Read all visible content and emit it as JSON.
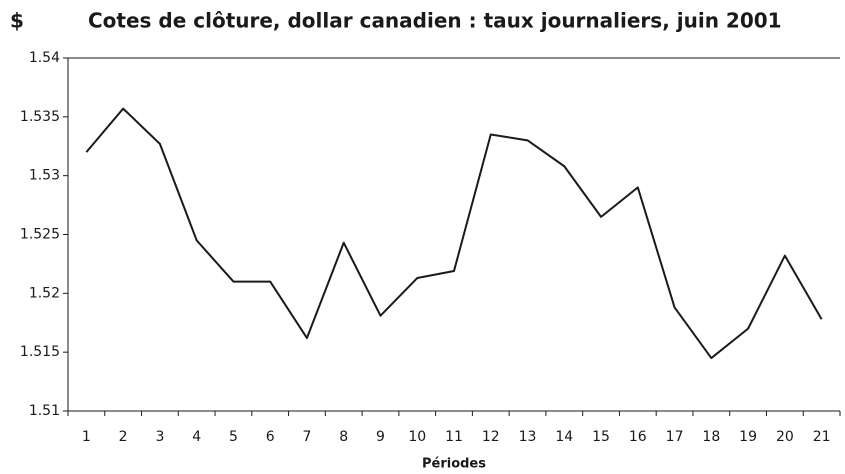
{
  "chart_data": {
    "type": "line",
    "title": "Cotes de clôture, dollar canadien : taux journaliers, juin 2001",
    "y_label": "$",
    "x_label": "Périodes",
    "categories": [
      "1",
      "2",
      "3",
      "4",
      "5",
      "6",
      "7",
      "8",
      "9",
      "10",
      "11",
      "12",
      "13",
      "14",
      "15",
      "16",
      "17",
      "18",
      "19",
      "20",
      "21"
    ],
    "series": [
      {
        "color": "#1a1a1a",
        "values": [
          1.532,
          1.5357,
          1.5327,
          1.5245,
          1.521,
          1.521,
          1.5162,
          1.5243,
          1.5181,
          1.5213,
          1.5219,
          1.5335,
          1.533,
          1.5308,
          1.5265,
          1.529,
          1.5188,
          1.5145,
          1.517,
          1.5232,
          1.5178
        ]
      }
    ],
    "ylim": [
      1.51,
      1.54
    ],
    "yticks": [
      1.51,
      1.515,
      1.52,
      1.525,
      1.53,
      1.535,
      1.54
    ],
    "grid": false
  }
}
